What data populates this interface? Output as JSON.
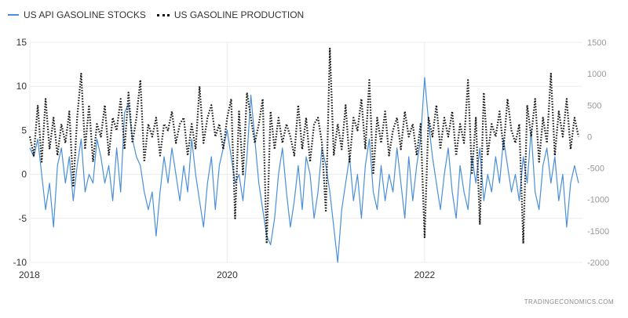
{
  "legend": {
    "series1": "US API GASOLINE STOCKS",
    "series2": "US GASOLINE PRODUCTION"
  },
  "watermark": "TRADINGECONOMICS.COM",
  "chart_data": {
    "type": "line",
    "x_ticks": [
      "2018",
      "2020",
      "2022"
    ],
    "x_range": [
      2018.0,
      2023.6
    ],
    "y_left": {
      "ticks": [
        15,
        10,
        5,
        0,
        -5,
        -10
      ],
      "range": [
        -10,
        15
      ]
    },
    "y_right": {
      "ticks": [
        1500,
        1000,
        500,
        0,
        -500,
        -1000,
        -1500,
        -2000
      ],
      "range": [
        -2000,
        1500
      ]
    },
    "grid": true,
    "legend_position": "top-left",
    "colors": {
      "series1": "#4a90d9",
      "series2": "#111111"
    },
    "series": [
      {
        "name": "US API GASOLINE STOCKS",
        "axis": "left",
        "style": "solid",
        "points": [
          [
            2018.0,
            3
          ],
          [
            2018.04,
            2
          ],
          [
            2018.08,
            4
          ],
          [
            2018.12,
            0
          ],
          [
            2018.16,
            -4
          ],
          [
            2018.2,
            -1
          ],
          [
            2018.24,
            -6
          ],
          [
            2018.28,
            1
          ],
          [
            2018.32,
            3
          ],
          [
            2018.36,
            -1
          ],
          [
            2018.4,
            2
          ],
          [
            2018.44,
            -3
          ],
          [
            2018.48,
            1
          ],
          [
            2018.52,
            4
          ],
          [
            2018.56,
            -2
          ],
          [
            2018.6,
            0
          ],
          [
            2018.64,
            -1
          ],
          [
            2018.68,
            4
          ],
          [
            2018.72,
            2
          ],
          [
            2018.76,
            -1
          ],
          [
            2018.8,
            1
          ],
          [
            2018.84,
            -3
          ],
          [
            2018.88,
            3
          ],
          [
            2018.92,
            -2
          ],
          [
            2018.96,
            7
          ],
          [
            2019.0,
            8
          ],
          [
            2019.04,
            4
          ],
          [
            2019.08,
            2
          ],
          [
            2019.12,
            1
          ],
          [
            2019.16,
            -2
          ],
          [
            2019.2,
            -4
          ],
          [
            2019.24,
            -2
          ],
          [
            2019.28,
            -7
          ],
          [
            2019.32,
            -2
          ],
          [
            2019.36,
            2
          ],
          [
            2019.4,
            -1
          ],
          [
            2019.44,
            3
          ],
          [
            2019.48,
            0
          ],
          [
            2019.52,
            -3
          ],
          [
            2019.56,
            1
          ],
          [
            2019.6,
            -2
          ],
          [
            2019.64,
            4
          ],
          [
            2019.68,
            0
          ],
          [
            2019.72,
            -3
          ],
          [
            2019.76,
            -6
          ],
          [
            2019.8,
            -1
          ],
          [
            2019.84,
            2
          ],
          [
            2019.88,
            -4
          ],
          [
            2019.92,
            1
          ],
          [
            2019.96,
            3
          ],
          [
            2020.0,
            5
          ],
          [
            2020.04,
            2
          ],
          [
            2020.08,
            -1
          ],
          [
            2020.12,
            0
          ],
          [
            2020.16,
            -3
          ],
          [
            2020.2,
            2
          ],
          [
            2020.24,
            9
          ],
          [
            2020.28,
            4
          ],
          [
            2020.32,
            -1
          ],
          [
            2020.36,
            -4
          ],
          [
            2020.4,
            -7
          ],
          [
            2020.44,
            -8
          ],
          [
            2020.48,
            -5
          ],
          [
            2020.52,
            0
          ],
          [
            2020.56,
            3
          ],
          [
            2020.6,
            -2
          ],
          [
            2020.64,
            -6
          ],
          [
            2020.68,
            -3
          ],
          [
            2020.72,
            1
          ],
          [
            2020.76,
            -4
          ],
          [
            2020.8,
            2
          ],
          [
            2020.84,
            0
          ],
          [
            2020.88,
            -5
          ],
          [
            2020.92,
            -2
          ],
          [
            2020.96,
            3
          ],
          [
            2021.0,
            1
          ],
          [
            2021.04,
            -2
          ],
          [
            2021.08,
            -6
          ],
          [
            2021.12,
            -10
          ],
          [
            2021.16,
            -4
          ],
          [
            2021.2,
            -1
          ],
          [
            2021.24,
            2
          ],
          [
            2021.28,
            -3
          ],
          [
            2021.32,
            0
          ],
          [
            2021.36,
            -5
          ],
          [
            2021.4,
            1
          ],
          [
            2021.44,
            4
          ],
          [
            2021.48,
            -2
          ],
          [
            2021.52,
            -4
          ],
          [
            2021.56,
            1
          ],
          [
            2021.6,
            -3
          ],
          [
            2021.64,
            0
          ],
          [
            2021.68,
            -2
          ],
          [
            2021.72,
            3
          ],
          [
            2021.76,
            -1
          ],
          [
            2021.8,
            -5
          ],
          [
            2021.84,
            2
          ],
          [
            2021.88,
            -3
          ],
          [
            2021.92,
            1
          ],
          [
            2021.96,
            4
          ],
          [
            2022.0,
            11
          ],
          [
            2022.04,
            6
          ],
          [
            2022.08,
            2
          ],
          [
            2022.12,
            -1
          ],
          [
            2022.16,
            -4
          ],
          [
            2022.2,
            0
          ],
          [
            2022.24,
            3
          ],
          [
            2022.28,
            -2
          ],
          [
            2022.32,
            -5
          ],
          [
            2022.36,
            1
          ],
          [
            2022.4,
            -2
          ],
          [
            2022.44,
            -4
          ],
          [
            2022.48,
            2
          ],
          [
            2022.52,
            -1
          ],
          [
            2022.56,
            3
          ],
          [
            2022.6,
            -3
          ],
          [
            2022.64,
            0
          ],
          [
            2022.68,
            -2
          ],
          [
            2022.72,
            2
          ],
          [
            2022.76,
            -1
          ],
          [
            2022.8,
            4
          ],
          [
            2022.84,
            1
          ],
          [
            2022.88,
            -2
          ],
          [
            2022.92,
            0
          ],
          [
            2022.96,
            -3
          ],
          [
            2023.0,
            2
          ],
          [
            2023.04,
            -1
          ],
          [
            2023.08,
            5
          ],
          [
            2023.12,
            -2
          ],
          [
            2023.16,
            -4
          ],
          [
            2023.2,
            1
          ],
          [
            2023.24,
            3
          ],
          [
            2023.28,
            -1
          ],
          [
            2023.32,
            2
          ],
          [
            2023.36,
            -3
          ],
          [
            2023.4,
            0
          ],
          [
            2023.44,
            -6
          ],
          [
            2023.48,
            -1
          ],
          [
            2023.52,
            1
          ],
          [
            2023.56,
            -1
          ]
        ]
      },
      {
        "name": "US GASOLINE PRODUCTION",
        "axis": "right",
        "style": "dotted",
        "points": [
          [
            2018.0,
            0
          ],
          [
            2018.04,
            -300
          ],
          [
            2018.08,
            500
          ],
          [
            2018.12,
            -400
          ],
          [
            2018.16,
            600
          ],
          [
            2018.2,
            -200
          ],
          [
            2018.24,
            300
          ],
          [
            2018.28,
            -300
          ],
          [
            2018.32,
            200
          ],
          [
            2018.36,
            -100
          ],
          [
            2018.4,
            400
          ],
          [
            2018.44,
            -800
          ],
          [
            2018.48,
            300
          ],
          [
            2018.52,
            1000
          ],
          [
            2018.56,
            -200
          ],
          [
            2018.6,
            500
          ],
          [
            2018.64,
            -400
          ],
          [
            2018.68,
            200
          ],
          [
            2018.72,
            0
          ],
          [
            2018.76,
            500
          ],
          [
            2018.8,
            -300
          ],
          [
            2018.84,
            300
          ],
          [
            2018.88,
            100
          ],
          [
            2018.92,
            600
          ],
          [
            2018.96,
            -200
          ],
          [
            2019.0,
            700
          ],
          [
            2019.04,
            -100
          ],
          [
            2019.08,
            300
          ],
          [
            2019.12,
            900
          ],
          [
            2019.16,
            -400
          ],
          [
            2019.2,
            200
          ],
          [
            2019.24,
            0
          ],
          [
            2019.28,
            300
          ],
          [
            2019.32,
            -300
          ],
          [
            2019.36,
            200
          ],
          [
            2019.4,
            100
          ],
          [
            2019.44,
            400
          ],
          [
            2019.48,
            -100
          ],
          [
            2019.52,
            200
          ],
          [
            2019.56,
            300
          ],
          [
            2019.6,
            -300
          ],
          [
            2019.64,
            200
          ],
          [
            2019.68,
            -200
          ],
          [
            2019.72,
            800
          ],
          [
            2019.76,
            -100
          ],
          [
            2019.8,
            300
          ],
          [
            2019.84,
            500
          ],
          [
            2019.88,
            0
          ],
          [
            2019.92,
            200
          ],
          [
            2019.96,
            -200
          ],
          [
            2020.0,
            300
          ],
          [
            2020.04,
            600
          ],
          [
            2020.08,
            -1300
          ],
          [
            2020.12,
            400
          ],
          [
            2020.16,
            -600
          ],
          [
            2020.2,
            700
          ],
          [
            2020.24,
            300
          ],
          [
            2020.28,
            -100
          ],
          [
            2020.32,
            200
          ],
          [
            2020.36,
            600
          ],
          [
            2020.4,
            -1700
          ],
          [
            2020.44,
            400
          ],
          [
            2020.48,
            -200
          ],
          [
            2020.52,
            300
          ],
          [
            2020.56,
            -100
          ],
          [
            2020.6,
            200
          ],
          [
            2020.64,
            0
          ],
          [
            2020.68,
            -300
          ],
          [
            2020.72,
            500
          ],
          [
            2020.76,
            -200
          ],
          [
            2020.8,
            300
          ],
          [
            2020.84,
            -400
          ],
          [
            2020.88,
            200
          ],
          [
            2020.92,
            300
          ],
          [
            2020.96,
            -100
          ],
          [
            2021.0,
            -1200
          ],
          [
            2021.04,
            1400
          ],
          [
            2021.08,
            -300
          ],
          [
            2021.12,
            200
          ],
          [
            2021.16,
            -200
          ],
          [
            2021.2,
            500
          ],
          [
            2021.24,
            -400
          ],
          [
            2021.28,
            300
          ],
          [
            2021.32,
            100
          ],
          [
            2021.36,
            600
          ],
          [
            2021.4,
            -200
          ],
          [
            2021.44,
            900
          ],
          [
            2021.48,
            -600
          ],
          [
            2021.52,
            300
          ],
          [
            2021.56,
            -100
          ],
          [
            2021.6,
            400
          ],
          [
            2021.64,
            -300
          ],
          [
            2021.68,
            100
          ],
          [
            2021.72,
            300
          ],
          [
            2021.76,
            -200
          ],
          [
            2021.8,
            400
          ],
          [
            2021.84,
            0
          ],
          [
            2021.88,
            200
          ],
          [
            2021.92,
            -300
          ],
          [
            2021.96,
            200
          ],
          [
            2022.0,
            -1600
          ],
          [
            2022.04,
            300
          ],
          [
            2022.08,
            0
          ],
          [
            2022.12,
            500
          ],
          [
            2022.16,
            -200
          ],
          [
            2022.2,
            300
          ],
          [
            2022.24,
            0
          ],
          [
            2022.28,
            400
          ],
          [
            2022.32,
            -300
          ],
          [
            2022.36,
            200
          ],
          [
            2022.4,
            -100
          ],
          [
            2022.44,
            900
          ],
          [
            2022.48,
            -600
          ],
          [
            2022.52,
            300
          ],
          [
            2022.56,
            -1400
          ],
          [
            2022.6,
            700
          ],
          [
            2022.64,
            -300
          ],
          [
            2022.68,
            200
          ],
          [
            2022.72,
            0
          ],
          [
            2022.76,
            400
          ],
          [
            2022.8,
            -200
          ],
          [
            2022.84,
            600
          ],
          [
            2022.88,
            100
          ],
          [
            2022.92,
            -100
          ],
          [
            2022.96,
            200
          ],
          [
            2023.0,
            -1700
          ],
          [
            2023.04,
            500
          ],
          [
            2023.08,
            0
          ],
          [
            2023.12,
            600
          ],
          [
            2023.16,
            -400
          ],
          [
            2023.2,
            300
          ],
          [
            2023.24,
            -100
          ],
          [
            2023.28,
            1000
          ],
          [
            2023.32,
            -300
          ],
          [
            2023.36,
            400
          ],
          [
            2023.4,
            0
          ],
          [
            2023.44,
            600
          ],
          [
            2023.48,
            -200
          ],
          [
            2023.52,
            300
          ],
          [
            2023.56,
            0
          ]
        ]
      }
    ]
  }
}
